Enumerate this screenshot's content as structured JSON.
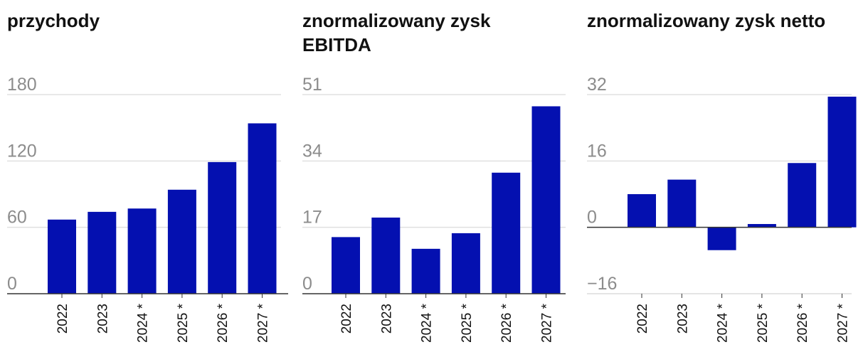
{
  "colors": {
    "bar": "#0410b0",
    "grid": "#e0e0e0",
    "axis": "#333333",
    "tick": "#8c8c8c",
    "text": "#111111"
  },
  "chart_data": [
    {
      "type": "bar",
      "title": "przychody",
      "categories": [
        "2022",
        "2023",
        "2024 *",
        "2025 *",
        "2026 *",
        "2027 *"
      ],
      "values": [
        67,
        74,
        77,
        94,
        119,
        154
      ],
      "yticks": [
        0,
        60,
        120,
        180
      ],
      "ylim": [
        0,
        180
      ],
      "grid": true
    },
    {
      "type": "bar",
      "title": "znormalizowany zysk EBITDA",
      "categories": [
        "2022",
        "2023",
        "2024 *",
        "2025 *",
        "2026 *",
        "2027 *"
      ],
      "values": [
        14.5,
        19.5,
        11.5,
        15.5,
        31,
        48
      ],
      "yticks": [
        0,
        17,
        34,
        51
      ],
      "ylim": [
        0,
        51
      ],
      "grid": true
    },
    {
      "type": "bar",
      "title": "znormalizowany zysk netto",
      "categories": [
        "2022",
        "2023",
        "2024 *",
        "2025 *",
        "2026 *",
        "2027 *"
      ],
      "values": [
        8,
        11.5,
        -5.5,
        0.8,
        15.5,
        31.5
      ],
      "yticks": [
        -16,
        0,
        16,
        32
      ],
      "ylim": [
        -16,
        32
      ],
      "grid": true
    }
  ]
}
